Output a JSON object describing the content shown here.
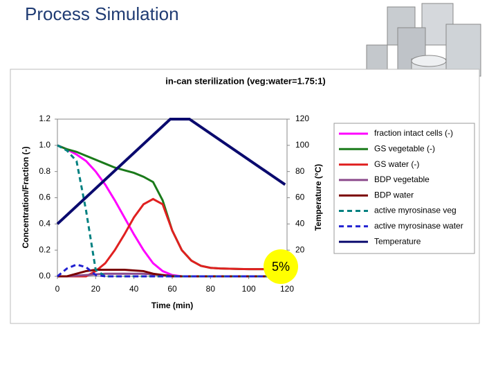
{
  "slide_title": "Process Simulation",
  "chart_data": {
    "type": "line",
    "title": "in-can sterilization (veg:water=1.75:1)",
    "x_label": "Time (min)",
    "y_label": "Concentration/Fraction (-)",
    "y2_label": "Temperature (°C)",
    "annotations": [
      "5%"
    ],
    "x": [
      0,
      5,
      10,
      15,
      20,
      25,
      30,
      35,
      40,
      45,
      50,
      55,
      60,
      65,
      70,
      75,
      80,
      85,
      90,
      95,
      100,
      105,
      110,
      115,
      120
    ],
    "series": [
      {
        "name": "fraction intact cells (-)",
        "color": "#ff00ff",
        "values": [
          1.0,
          0.97,
          0.93,
          0.88,
          0.8,
          0.7,
          0.58,
          0.45,
          0.32,
          0.2,
          0.1,
          0.04,
          0.01,
          0,
          0,
          0,
          0,
          0,
          0,
          0,
          0,
          0,
          0,
          0,
          0
        ]
      },
      {
        "name": "GS vegetable (-)",
        "color": "#1a7a1a",
        "values": [
          1.0,
          0.97,
          0.95,
          0.92,
          0.89,
          0.86,
          0.83,
          0.81,
          0.79,
          0.76,
          0.72,
          0.58,
          0.35,
          0.2,
          0.12,
          0.08,
          0.065,
          0.06,
          0.058,
          0.056,
          0.055,
          0.055,
          0.055,
          0.055,
          0.055
        ]
      },
      {
        "name": "GS water (-)",
        "color": "#e02020",
        "values": [
          0,
          0,
          0,
          0,
          0.04,
          0.1,
          0.2,
          0.32,
          0.45,
          0.55,
          0.59,
          0.55,
          0.35,
          0.2,
          0.12,
          0.08,
          0.065,
          0.06,
          0.058,
          0.056,
          0.055,
          0.055,
          0.055,
          0.055,
          0.055
        ]
      },
      {
        "name": "BDP vegetable",
        "color": "#8b4a8b",
        "values": [
          0,
          0,
          0.005,
          0.01,
          0.015,
          0.02,
          0.02,
          0.02,
          0.02,
          0.02,
          0.015,
          0.01,
          0.005,
          0,
          0,
          0,
          0,
          0,
          0,
          0,
          0,
          0,
          0,
          0,
          0
        ]
      },
      {
        "name": "BDP water",
        "color": "#7a0000",
        "values": [
          0,
          0,
          0.02,
          0.04,
          0.05,
          0.05,
          0.05,
          0.05,
          0.045,
          0.04,
          0.02,
          0.01,
          0,
          0,
          0,
          0,
          0,
          0,
          0,
          0,
          0,
          0,
          0,
          0,
          0
        ]
      },
      {
        "name": "active myrosinase veg",
        "color": "#008080",
        "dash": true,
        "values": [
          1.0,
          0.96,
          0.88,
          0.5,
          0.05,
          0,
          0,
          0,
          0,
          0,
          0,
          0,
          0,
          0,
          0,
          0,
          0,
          0,
          0,
          0,
          0,
          0,
          0,
          0,
          0
        ]
      },
      {
        "name": "active myrosinase water",
        "color": "#2020d0",
        "dash": true,
        "values": [
          0,
          0.06,
          0.09,
          0.07,
          0.01,
          0,
          0,
          0,
          0,
          0,
          0,
          0,
          0,
          0,
          0,
          0,
          0,
          0,
          0,
          0,
          0,
          0,
          0,
          0,
          0
        ]
      },
      {
        "name": "Temperature",
        "color": "#0a0a6e",
        "axis": "y2",
        "x": [
          0,
          59,
          69,
          119
        ],
        "values": [
          40,
          120,
          120,
          70
        ]
      }
    ],
    "xlim": [
      0,
      120
    ],
    "xticks": [
      0,
      20,
      40,
      60,
      80,
      100,
      120
    ],
    "ylim": [
      0,
      1.2
    ],
    "yticks": [
      {
        "value": 0,
        "label": "0.0"
      },
      0.2,
      0.4,
      0.6,
      0.8,
      {
        "value": 1,
        "label": "1.0"
      },
      1.2
    ],
    "y2lim": [
      0,
      120
    ],
    "y2ticks": [
      20,
      40,
      60,
      80,
      100,
      120
    ],
    "legend": "right"
  }
}
